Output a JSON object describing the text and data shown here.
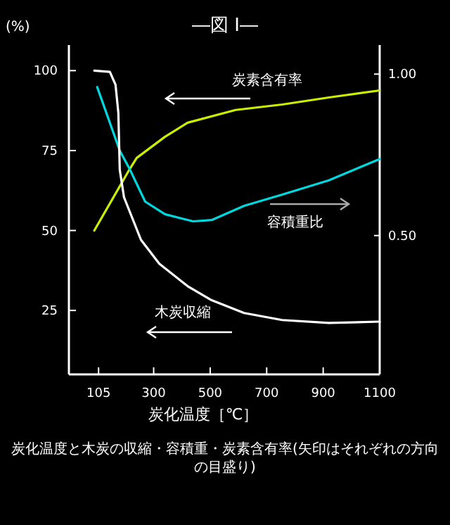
{
  "chart_data": {
    "type": "line",
    "title": "―図 I―",
    "ylabel": "(%)",
    "xlabel": "炭化温度［℃］",
    "xlim": [
      0,
      1100
    ],
    "xticks": [
      105,
      300,
      500,
      700,
      900,
      1100
    ],
    "ylim": [
      5,
      108
    ],
    "yticks": [
      25,
      50,
      75,
      100
    ],
    "y2lim": [
      0.07,
      1.09
    ],
    "y2ticks": [
      {
        "value": 0.5,
        "label": "0.50"
      },
      {
        "value": 1.0,
        "label": "1.00"
      }
    ],
    "grid": false,
    "legend": false,
    "marker": "none",
    "line_style": "solid",
    "series": [
      {
        "name": "炭素含有率",
        "color": "#ccee00",
        "x": [
          90,
          215,
          240,
          340,
          420,
          590,
          755,
          920,
          1100
        ],
        "values": [
          50,
          69.2,
          72.7,
          79.3,
          83.7,
          87.7,
          89.4,
          91.6,
          93.8
        ]
      },
      {
        "name": "容積重比",
        "color": "#00d8e0",
        "axis": "y2",
        "x": [
          100,
          180,
          215,
          270,
          340,
          440,
          505,
          620,
          755,
          920,
          1100
        ],
        "values": [
          0.96,
          0.763,
          0.706,
          0.605,
          0.566,
          0.544,
          0.548,
          0.592,
          0.627,
          0.671,
          0.737
        ]
      },
      {
        "name": "木炭収縮",
        "color": "#ffffff",
        "x": [
          90,
          145,
          165,
          175,
          180,
          195,
          255,
          320,
          420,
          505,
          620,
          755,
          920,
          1100
        ],
        "values": [
          100,
          99.6,
          95.6,
          86.8,
          69,
          60.4,
          47.1,
          39.6,
          32.6,
          28.2,
          24.2,
          22.0,
          21.1,
          21.5
        ]
      }
    ],
    "annotations": [
      "炭化温度と木炭の収縮・容積重・炭素含有率(矢印はそれぞれの方向の目盛り)"
    ]
  }
}
